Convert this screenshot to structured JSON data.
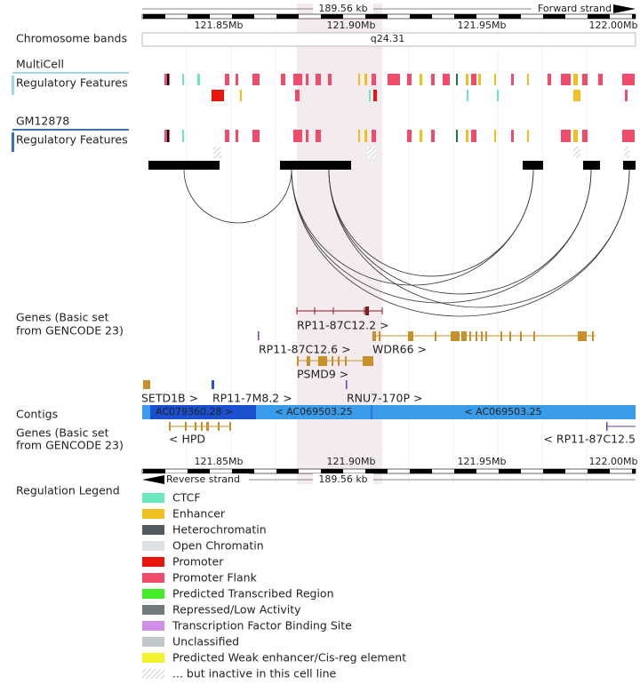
{
  "header": {
    "top_span": "189.56 kb",
    "top_strand": "Forward strand",
    "ticks": [
      "121.85Mb",
      "121.90Mb",
      "121.95Mb",
      "122.00Mb"
    ]
  },
  "tracks": {
    "chromosome_bands": "Chromosome bands",
    "band": "q24.31",
    "multicell": "MultiCell",
    "multicell_reg": "Regulatory Features",
    "gm12878": "GM12878",
    "gm12878_reg": "Regulatory Features",
    "genes_top": [
      "Genes (Basic set",
      "from GENCODE 23)"
    ],
    "contigs": "Contigs",
    "genes_bottom": [
      "Genes (Basic set",
      "from GENCODE 23)"
    ]
  },
  "genes": [
    {
      "label": "RP11-87C12.2 >",
      "color": "#8b1a1a"
    },
    {
      "label": "RP11-87C12.6 >",
      "color": "#6e3fa0"
    },
    {
      "label": "WDR66 >",
      "color": "#c8902a"
    },
    {
      "label": "PSMD9 >",
      "color": "#c8902a"
    },
    {
      "label": "SETD1B >",
      "color": "#c8902a"
    },
    {
      "label": "RP11-7M8.2 >",
      "color": "#3050d0"
    },
    {
      "label": "RNU7-170P >",
      "color": "#6e3fa0"
    },
    {
      "label": "< HPD",
      "color": "#c8902a"
    },
    {
      "label": "< RP11-87C12.5",
      "color": "#6e3fa0"
    }
  ],
  "contigs": [
    "AC079360.28 >",
    "< AC069503.25",
    "< AC069503.25"
  ],
  "footer": {
    "ticks": [
      "121.85Mb",
      "121.90Mb",
      "121.95Mb",
      "122.00Mb"
    ],
    "bottom_strand": "Reverse strand",
    "bottom_span": "189.56 kb"
  },
  "legend": {
    "title": "Regulation Legend",
    "items": [
      {
        "label": "CTCF",
        "color": "#6ce8c0"
      },
      {
        "label": "Enhancer",
        "color": "#f0c020"
      },
      {
        "label": "Heterochromatin",
        "color": "#505a60"
      },
      {
        "label": "Open Chromatin",
        "color": "#dde1e4"
      },
      {
        "label": "Promoter",
        "color": "#e8170e"
      },
      {
        "label": "Promoter Flank",
        "color": "#ef4b6a"
      },
      {
        "label": "Predicted Transcribed Region",
        "color": "#44ec28"
      },
      {
        "label": "Repressed/Low Activity",
        "color": "#6f7a7c"
      },
      {
        "label": "Transcription Factor Binding Site",
        "color": "#cf8fe8"
      },
      {
        "label": "Unclassified",
        "color": "#c1c6c8"
      },
      {
        "label": "Predicted Weak enhancer/Cis-reg element",
        "color": "#f2f22a"
      },
      {
        "label": "... but inactive in this cell line",
        "pattern": "hatched"
      }
    ]
  }
}
